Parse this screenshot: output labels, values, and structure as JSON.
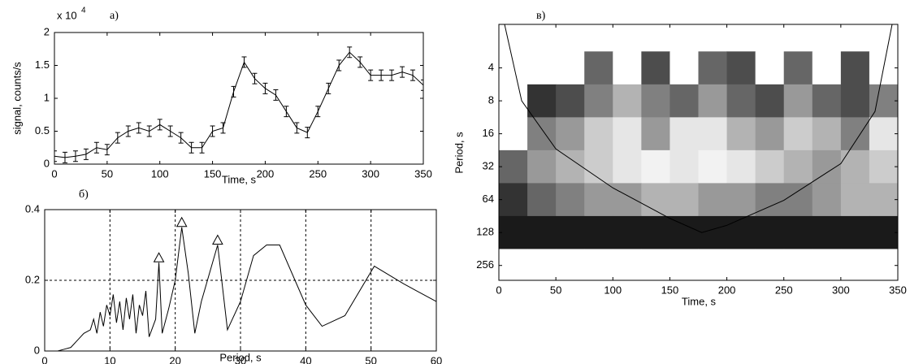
{
  "chart_data": [
    {
      "type": "errorbar",
      "panel_label": "а)",
      "y_multiplier": "x 10",
      "y_multiplier_exp": "4",
      "xlabel": "Time, s",
      "ylabel": "signal, counts/s",
      "x": [
        0,
        10,
        20,
        30,
        40,
        50,
        60,
        70,
        80,
        90,
        100,
        110,
        120,
        130,
        140,
        150,
        160,
        170,
        180,
        190,
        200,
        210,
        220,
        230,
        240,
        250,
        260,
        270,
        280,
        290,
        300,
        310,
        320,
        330,
        340,
        350
      ],
      "values": [
        0.12,
        0.1,
        0.12,
        0.15,
        0.25,
        0.22,
        0.4,
        0.5,
        0.55,
        0.5,
        0.6,
        0.5,
        0.4,
        0.25,
        0.25,
        0.5,
        0.55,
        1.1,
        1.55,
        1.3,
        1.15,
        1.05,
        0.8,
        0.55,
        0.48,
        0.8,
        1.15,
        1.5,
        1.7,
        1.55,
        1.35,
        1.35,
        1.35,
        1.4,
        1.35,
        1.2
      ],
      "error": 0.08,
      "color": "#000000",
      "xlim": [
        0,
        350
      ],
      "xticks": [
        0,
        50,
        100,
        150,
        200,
        250,
        300,
        350
      ],
      "ylim": [
        0,
        2
      ],
      "yticks": [
        0,
        0.5,
        1,
        1.5,
        2
      ],
      "grid": false
    },
    {
      "type": "line",
      "panel_label": "б)",
      "xlabel": "Period, s",
      "x": [
        2,
        3,
        4,
        5,
        6,
        7,
        7.5,
        8,
        8.5,
        9,
        9.5,
        10,
        10.5,
        11,
        11.5,
        12,
        12.5,
        13,
        13.5,
        14,
        14.5,
        15,
        15.5,
        16,
        17,
        17.5,
        18,
        19,
        20,
        21,
        22,
        23,
        24,
        26.5,
        28,
        30,
        32,
        34,
        36,
        40,
        42.5,
        46,
        50.5,
        55,
        60
      ],
      "values": [
        0,
        0.005,
        0.01,
        0.03,
        0.05,
        0.06,
        0.09,
        0.05,
        0.11,
        0.07,
        0.13,
        0.1,
        0.16,
        0.08,
        0.14,
        0.06,
        0.15,
        0.09,
        0.16,
        0.05,
        0.13,
        0.1,
        0.17,
        0.04,
        0.09,
        0.25,
        0.05,
        0.12,
        0.2,
        0.35,
        0.22,
        0.05,
        0.14,
        0.3,
        0.06,
        0.14,
        0.27,
        0.3,
        0.3,
        0.13,
        0.07,
        0.1,
        0.24,
        0.19,
        0.14
      ],
      "peaks": {
        "x": [
          17.5,
          21,
          26.5
        ],
        "values": [
          0.25,
          0.35,
          0.3
        ]
      },
      "color": "#000000",
      "xlim": [
        0,
        60
      ],
      "xticks": [
        0,
        10,
        20,
        30,
        40,
        50,
        60
      ],
      "ylim": [
        0,
        0.4
      ],
      "yticks": [
        0,
        0.2,
        0.4
      ],
      "grid": true
    },
    {
      "type": "heatmap",
      "panel_label": "в)",
      "xlabel": "Time, s",
      "ylabel": "Period, s",
      "colormap": "gray",
      "log_y": true,
      "invert_y": true,
      "x": [
        12.5,
        37.5,
        62.5,
        87.5,
        112.5,
        137.5,
        162.5,
        187.5,
        212.5,
        237.5,
        262.5,
        287.5,
        312.5,
        337.5
      ],
      "y": [
        2,
        4,
        8,
        16,
        32,
        64,
        128,
        256
      ],
      "values": [
        [
          1,
          1,
          1,
          1,
          1,
          1,
          1,
          1,
          1,
          1,
          1,
          1,
          1,
          1
        ],
        [
          1,
          1,
          1,
          0.4,
          1,
          0.3,
          1,
          0.4,
          0.3,
          1,
          0.4,
          1,
          0.3,
          1
        ],
        [
          1,
          0.2,
          0.3,
          0.5,
          0.7,
          0.5,
          0.4,
          0.6,
          0.4,
          0.3,
          0.6,
          0.4,
          0.3,
          0.5
        ],
        [
          1,
          0.5,
          0.6,
          0.8,
          0.9,
          0.6,
          0.9,
          0.9,
          0.7,
          0.6,
          0.8,
          0.7,
          0.5,
          0.9
        ],
        [
          0.4,
          0.6,
          0.7,
          0.8,
          0.9,
          0.95,
          0.9,
          0.95,
          0.9,
          0.8,
          0.7,
          0.6,
          0.7,
          0.8
        ],
        [
          0.2,
          0.4,
          0.5,
          0.6,
          0.6,
          0.7,
          0.7,
          0.6,
          0.6,
          0.5,
          0.5,
          0.6,
          0.7,
          0.7
        ],
        [
          0.1,
          0.1,
          0.1,
          0.1,
          0.1,
          0.1,
          0.1,
          0.1,
          0.1,
          0.1,
          0.1,
          0.1,
          0.1,
          0.1
        ],
        [
          1,
          1,
          1,
          1,
          1,
          1,
          1,
          1,
          1,
          1,
          1,
          1,
          1,
          1
        ]
      ],
      "cone": {
        "x": [
          5,
          20,
          50,
          100,
          150,
          178,
          200,
          250,
          300,
          330,
          345
        ],
        "values": [
          1.6,
          8,
          22,
          50,
          95,
          128,
          110,
          65,
          30,
          10,
          1.6
        ]
      },
      "xlim": [
        0,
        350
      ],
      "xticks": [
        0,
        50,
        100,
        150,
        200,
        250,
        300,
        350
      ],
      "ylim": [
        1.6,
        350
      ],
      "yticks": [
        4,
        8,
        16,
        32,
        64,
        128,
        256
      ],
      "grid": false
    }
  ]
}
